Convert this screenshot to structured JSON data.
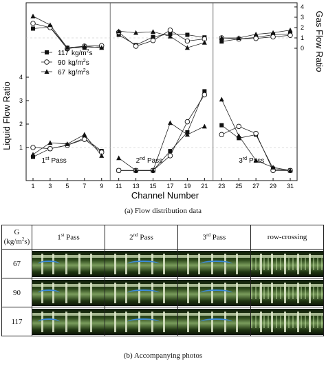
{
  "chart_data": {
    "type": "line",
    "y_left_title": "Liquid Flow Ratio",
    "y_right_title": "Gas Flow Ratio",
    "xlabel": "Channel Number",
    "x_ticks": [
      "1",
      "3",
      "5",
      "7",
      "9",
      "11",
      "13",
      "15",
      "17",
      "19",
      "21",
      "23",
      "25",
      "27",
      "29",
      "31"
    ],
    "liquid_ylim": [
      0,
      4
    ],
    "liquid_ticks": [
      "1",
      "2",
      "3",
      "4"
    ],
    "gas_ylim": [
      0,
      4
    ],
    "gas_ticks": [
      "0",
      "1",
      "2",
      "3",
      "4"
    ],
    "pass_labels": [
      "1st Pass",
      "2nd Pass",
      "3rd Pass"
    ],
    "pass_label_parts": [
      {
        "num": "1",
        "sup": "st",
        "word": "Pass"
      },
      {
        "num": "2",
        "sup": "nd",
        "word": "Pass"
      },
      {
        "num": "3",
        "sup": "rd",
        "word": "Pass"
      }
    ],
    "legend_position": "left, between panels",
    "series": [
      {
        "name": "117 kg/m2s",
        "marker": "square-filled",
        "gas": [
          [
            [
              1,
              1.9
            ],
            [
              3,
              2.05
            ],
            [
              5,
              0.05
            ],
            [
              7,
              0.05
            ],
            [
              9,
              0.15
            ]
          ],
          [
            [
              11,
              1.3
            ],
            [
              13,
              0.3
            ],
            [
              15,
              1.1
            ],
            [
              17,
              1.4
            ],
            [
              19,
              1.3
            ],
            [
              21,
              1.05
            ]
          ],
          [
            [
              23,
              0.65
            ],
            [
              25,
              0.9
            ],
            [
              27,
              1.05
            ],
            [
              29,
              1.3
            ],
            [
              31,
              1.4
            ]
          ]
        ],
        "liquid": [
          [
            [
              1,
              0.6
            ],
            [
              3,
              0.95
            ],
            [
              5,
              1.1
            ],
            [
              7,
              1.4
            ],
            [
              9,
              0.85
            ]
          ],
          [
            [
              11,
              0.02
            ],
            [
              13,
              0.02
            ],
            [
              15,
              0.02
            ],
            [
              17,
              0.85
            ],
            [
              19,
              1.65
            ],
            [
              21,
              3.4
            ]
          ],
          [
            [
              23,
              1.95
            ],
            [
              25,
              1.4
            ],
            [
              27,
              1.55
            ],
            [
              29,
              0.1
            ],
            [
              31,
              0.02
            ]
          ]
        ]
      },
      {
        "name": "90 kg/m2s",
        "marker": "circle-open",
        "gas": [
          [
            [
              1,
              2.4
            ],
            [
              3,
              2.0
            ],
            [
              5,
              -0.05
            ],
            [
              7,
              0.2
            ],
            [
              9,
              0.25
            ]
          ],
          [
            [
              11,
              1.55
            ],
            [
              13,
              0.2
            ],
            [
              15,
              0.75
            ],
            [
              17,
              1.75
            ],
            [
              19,
              0.7
            ],
            [
              21,
              0.9
            ]
          ],
          [
            [
              23,
              1.0
            ],
            [
              25,
              0.9
            ],
            [
              27,
              0.95
            ],
            [
              29,
              1.1
            ],
            [
              31,
              1.25
            ]
          ]
        ],
        "liquid": [
          [
            [
              1,
              1.0
            ],
            [
              3,
              0.95
            ],
            [
              5,
              1.1
            ],
            [
              7,
              1.35
            ],
            [
              9,
              0.8
            ]
          ],
          [
            [
              11,
              0.02
            ],
            [
              13,
              0.02
            ],
            [
              15,
              0.02
            ],
            [
              17,
              0.65
            ],
            [
              19,
              2.1
            ],
            [
              21,
              3.25
            ]
          ],
          [
            [
              23,
              1.55
            ],
            [
              25,
              1.9
            ],
            [
              27,
              1.6
            ],
            [
              29,
              0.02
            ],
            [
              31,
              0.02
            ]
          ]
        ]
      },
      {
        "name": "67 kg/m2s",
        "marker": "triangle-filled",
        "gas": [
          [
            [
              1,
              3.1
            ],
            [
              3,
              2.25
            ],
            [
              5,
              0.05
            ],
            [
              7,
              0.2
            ],
            [
              9,
              0.05
            ]
          ],
          [
            [
              11,
              1.65
            ],
            [
              13,
              1.5
            ],
            [
              15,
              1.6
            ],
            [
              17,
              1.15
            ],
            [
              19,
              0.05
            ],
            [
              21,
              0.55
            ]
          ],
          [
            [
              23,
              1.0
            ],
            [
              25,
              1.0
            ],
            [
              27,
              1.35
            ],
            [
              29,
              1.5
            ],
            [
              31,
              1.75
            ]
          ]
        ],
        "liquid": [
          [
            [
              1,
              0.7
            ],
            [
              3,
              1.2
            ],
            [
              5,
              1.15
            ],
            [
              7,
              1.55
            ],
            [
              9,
              0.65
            ]
          ],
          [
            [
              11,
              0.55
            ],
            [
              13,
              0.02
            ],
            [
              15,
              0.02
            ],
            [
              17,
              2.05
            ],
            [
              19,
              1.55
            ],
            [
              21,
              1.9
            ]
          ],
          [
            [
              23,
              3.05
            ],
            [
              25,
              1.5
            ],
            [
              27,
              0.45
            ],
            [
              29,
              0.15
            ],
            [
              31,
              0.02
            ]
          ]
        ]
      }
    ]
  },
  "legend_parts": [
    {
      "value": "117",
      "unit": "kg/m",
      "sup": "2",
      "tail": "s"
    },
    {
      "value": "90",
      "unit": "kg/m",
      "sup": "2",
      "tail": "s"
    },
    {
      "value": "67",
      "unit": "kg/m",
      "sup": "2",
      "tail": "s"
    }
  ],
  "caption_a": "(a)     Flow distribution data",
  "caption_b": "(b)  Accompanying photos",
  "photo_table": {
    "corner": {
      "line1": "G",
      "line2_unit": "(kg/m",
      "line2_sup": "2",
      "line2_tail": "s)"
    },
    "columns": [
      {
        "num": "1",
        "sup": "st",
        "word": "Pass"
      },
      {
        "num": "2",
        "sup": "nd",
        "word": "Pass"
      },
      {
        "num": "3",
        "sup": "rd",
        "word": "Pass"
      },
      {
        "label": "row-crossing"
      }
    ],
    "rows": [
      "67",
      "90",
      "117"
    ]
  }
}
